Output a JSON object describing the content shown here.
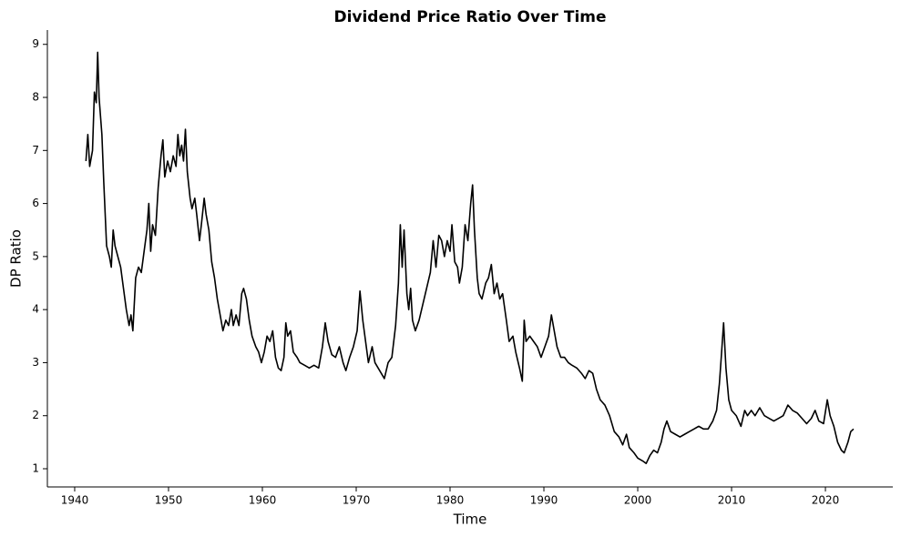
{
  "chart_data": {
    "type": "line",
    "title": "Dividend Price Ratio Over Time",
    "x_label": "Time",
    "y_label": "DP Ratio",
    "color": "#000000",
    "xlim": [
      1937.09,
      2027.18
    ],
    "ylim": [
      0.657,
      9.27
    ],
    "xticks": [
      1940,
      1950,
      1960,
      1970,
      1980,
      1990,
      2000,
      2010,
      2020
    ],
    "yticks": [
      1,
      2,
      3,
      4,
      5,
      6,
      7,
      8,
      9
    ],
    "x": [
      1941.2,
      1941.4,
      1941.6,
      1941.9,
      1942.1,
      1942.3,
      1942.45,
      1942.6,
      1942.9,
      1943.1,
      1943.4,
      1943.7,
      1943.9,
      1944.1,
      1944.3,
      1944.6,
      1944.9,
      1945.2,
      1945.5,
      1945.8,
      1946.0,
      1946.2,
      1946.5,
      1946.8,
      1947.1,
      1947.4,
      1947.7,
      1947.9,
      1948.1,
      1948.3,
      1948.6,
      1948.9,
      1949.2,
      1949.4,
      1949.6,
      1949.9,
      1950.2,
      1950.5,
      1950.8,
      1951.0,
      1951.2,
      1951.4,
      1951.6,
      1951.8,
      1952.0,
      1952.3,
      1952.5,
      1952.8,
      1953.0,
      1953.3,
      1953.5,
      1953.8,
      1954.0,
      1954.3,
      1954.6,
      1954.9,
      1955.2,
      1955.5,
      1955.8,
      1956.1,
      1956.4,
      1956.7,
      1956.9,
      1957.2,
      1957.5,
      1957.8,
      1958.0,
      1958.3,
      1958.6,
      1958.9,
      1959.3,
      1959.6,
      1959.9,
      1960.2,
      1960.5,
      1960.8,
      1961.1,
      1961.4,
      1961.7,
      1962.0,
      1962.3,
      1962.5,
      1962.7,
      1963.0,
      1963.3,
      1963.7,
      1964.0,
      1964.5,
      1965.0,
      1965.5,
      1966.0,
      1966.4,
      1966.7,
      1967.0,
      1967.4,
      1967.8,
      1968.2,
      1968.6,
      1968.9,
      1969.3,
      1969.7,
      1970.1,
      1970.4,
      1970.7,
      1971.0,
      1971.3,
      1971.7,
      1972.0,
      1972.5,
      1973.0,
      1973.4,
      1973.8,
      1974.2,
      1974.5,
      1974.7,
      1974.9,
      1975.1,
      1975.4,
      1975.6,
      1975.8,
      1976.0,
      1976.3,
      1976.7,
      1977.1,
      1977.5,
      1977.9,
      1978.2,
      1978.5,
      1978.8,
      1979.1,
      1979.4,
      1979.7,
      1980.0,
      1980.2,
      1980.5,
      1980.8,
      1981.0,
      1981.3,
      1981.6,
      1981.9,
      1982.2,
      1982.4,
      1982.6,
      1982.9,
      1983.1,
      1983.4,
      1983.8,
      1984.1,
      1984.4,
      1984.7,
      1985.0,
      1985.3,
      1985.6,
      1986.0,
      1986.3,
      1986.7,
      1987.0,
      1987.4,
      1987.7,
      1987.9,
      1988.1,
      1988.5,
      1988.9,
      1989.3,
      1989.7,
      1990.1,
      1990.5,
      1990.8,
      1991.1,
      1991.4,
      1991.8,
      1992.2,
      1992.6,
      1993.0,
      1993.5,
      1994.0,
      1994.4,
      1994.8,
      1995.2,
      1995.6,
      1996.0,
      1996.5,
      1997.0,
      1997.5,
      1998.0,
      1998.4,
      1998.8,
      1999.1,
      1999.6,
      2000.0,
      2000.5,
      2000.9,
      2001.3,
      2001.7,
      2002.1,
      2002.5,
      2002.8,
      2003.1,
      2003.5,
      2004.0,
      2004.5,
      2005.0,
      2005.5,
      2006.0,
      2006.5,
      2007.0,
      2007.5,
      2008.0,
      2008.4,
      2008.7,
      2008.9,
      2009.15,
      2009.4,
      2009.7,
      2010.0,
      2010.5,
      2011.0,
      2011.4,
      2011.7,
      2012.1,
      2012.5,
      2013.0,
      2013.5,
      2014.0,
      2014.5,
      2015.0,
      2015.5,
      2016.0,
      2016.5,
      2017.0,
      2017.5,
      2018.0,
      2018.5,
      2018.9,
      2019.3,
      2019.8,
      2020.2,
      2020.5,
      2020.9,
      2021.3,
      2021.7,
      2022.0,
      2022.4,
      2022.7,
      2023.0
    ],
    "values": [
      6.8,
      7.3,
      6.7,
      7.0,
      8.1,
      7.9,
      8.85,
      8.0,
      7.3,
      6.4,
      5.2,
      5.0,
      4.8,
      5.5,
      5.2,
      5.0,
      4.8,
      4.4,
      4.0,
      3.7,
      3.9,
      3.6,
      4.6,
      4.8,
      4.7,
      5.1,
      5.5,
      6.0,
      5.1,
      5.6,
      5.4,
      6.3,
      6.9,
      7.2,
      6.5,
      6.8,
      6.6,
      6.9,
      6.7,
      7.3,
      6.9,
      7.1,
      6.8,
      7.4,
      6.6,
      6.1,
      5.9,
      6.1,
      5.8,
      5.3,
      5.6,
      6.1,
      5.8,
      5.5,
      4.9,
      4.6,
      4.2,
      3.9,
      3.6,
      3.8,
      3.7,
      4.0,
      3.7,
      3.9,
      3.7,
      4.3,
      4.4,
      4.2,
      3.8,
      3.5,
      3.3,
      3.2,
      3.0,
      3.2,
      3.5,
      3.4,
      3.6,
      3.1,
      2.9,
      2.85,
      3.1,
      3.75,
      3.5,
      3.6,
      3.2,
      3.1,
      3.0,
      2.95,
      2.9,
      2.95,
      2.9,
      3.3,
      3.75,
      3.4,
      3.15,
      3.1,
      3.3,
      3.0,
      2.85,
      3.1,
      3.3,
      3.6,
      4.35,
      3.8,
      3.4,
      3.0,
      3.3,
      3.0,
      2.85,
      2.7,
      3.0,
      3.1,
      3.7,
      4.5,
      5.6,
      4.8,
      5.5,
      4.3,
      4.0,
      4.4,
      3.8,
      3.6,
      3.8,
      4.1,
      4.4,
      4.7,
      5.3,
      4.8,
      5.4,
      5.3,
      5.0,
      5.3,
      5.1,
      5.6,
      4.9,
      4.8,
      4.5,
      4.8,
      5.6,
      5.3,
      6.0,
      6.35,
      5.5,
      4.6,
      4.3,
      4.2,
      4.5,
      4.6,
      4.85,
      4.3,
      4.5,
      4.2,
      4.3,
      3.8,
      3.4,
      3.5,
      3.2,
      2.9,
      2.65,
      3.8,
      3.4,
      3.5,
      3.4,
      3.3,
      3.1,
      3.3,
      3.5,
      3.9,
      3.6,
      3.3,
      3.1,
      3.1,
      3.0,
      2.95,
      2.9,
      2.8,
      2.7,
      2.85,
      2.8,
      2.5,
      2.3,
      2.2,
      2.0,
      1.7,
      1.6,
      1.45,
      1.65,
      1.4,
      1.3,
      1.2,
      1.15,
      1.1,
      1.25,
      1.35,
      1.3,
      1.5,
      1.75,
      1.9,
      1.7,
      1.65,
      1.6,
      1.65,
      1.7,
      1.75,
      1.8,
      1.75,
      1.75,
      1.9,
      2.1,
      2.6,
      3.1,
      3.75,
      2.9,
      2.3,
      2.1,
      2.0,
      1.8,
      2.1,
      2.0,
      2.1,
      2.0,
      2.15,
      2.0,
      1.95,
      1.9,
      1.95,
      2.0,
      2.2,
      2.1,
      2.05,
      1.95,
      1.85,
      1.95,
      2.1,
      1.9,
      1.85,
      2.3,
      2.0,
      1.8,
      1.5,
      1.35,
      1.3,
      1.5,
      1.7,
      1.75
    ]
  }
}
